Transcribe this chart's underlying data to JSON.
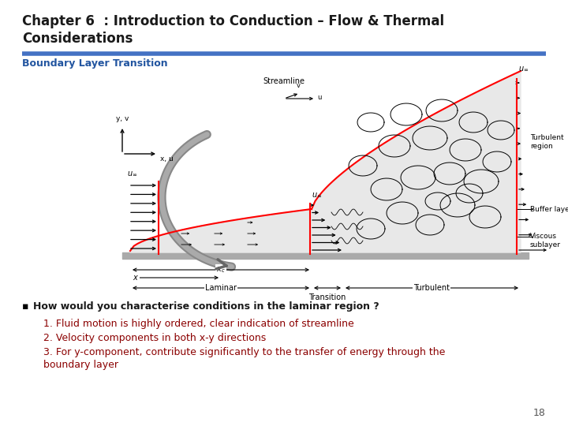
{
  "title_line1": "Chapter 6  : Introduction to Conduction – Flow & Thermal",
  "title_line2": "Considerations",
  "subtitle": "Boundary Layer Transition",
  "bullet_text": "How would you characterise conditions in the laminar region ?",
  "point1": "1. Fluid motion is highly ordered, clear indication of streamline",
  "point2": "2. Velocity components in both x-y directions",
  "point3_line1": "3. For y-component, contribute significantly to the transfer of energy through the",
  "point3_line2": "boundary layer",
  "page_number": "18",
  "title_color": "#1a1a1a",
  "subtitle_color": "#2255a0",
  "bullet_color": "#1a1a1a",
  "dark_red": "#8b0000",
  "separator_color": "#4472c4",
  "bg_color": "#ffffff",
  "title_fontsize": 12,
  "subtitle_fontsize": 9,
  "bullet_fontsize": 9,
  "body_fontsize": 9,
  "separator_thickness": 4
}
